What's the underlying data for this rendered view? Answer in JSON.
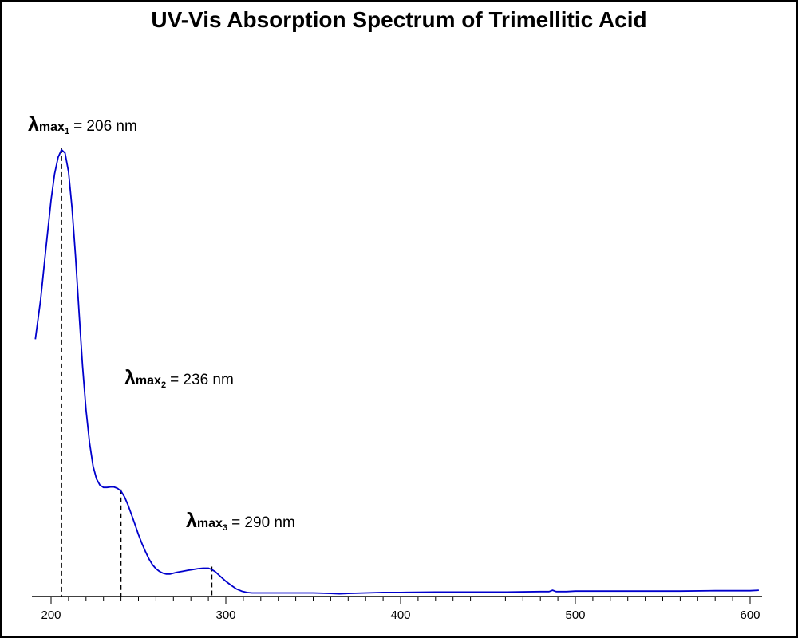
{
  "chart_data": {
    "type": "line",
    "title": "UV-Vis Absorption Spectrum of Trimellitic Acid",
    "xlabel": "",
    "ylabel": "",
    "xlim": [
      191,
      605
    ],
    "ylim": [
      0,
      1
    ],
    "x_ticks": [
      200,
      300,
      400,
      500,
      600
    ],
    "minor_tick_step": 10,
    "grid": false,
    "legend": "none",
    "series": [
      {
        "color": "#0000cc",
        "x": [
          191,
          194,
          197,
          200,
          202,
          204,
          206,
          208,
          210,
          212,
          214,
          216,
          218,
          220,
          222,
          224,
          226,
          228,
          230,
          232,
          234,
          236,
          238,
          240,
          242,
          244,
          246,
          248,
          250,
          252,
          254,
          256,
          258,
          260,
          262,
          264,
          266,
          268,
          270,
          272,
          275,
          278,
          281,
          284,
          287,
          290,
          292,
          294,
          296,
          298,
          300,
          303,
          306,
          309,
          312,
          315,
          318,
          322,
          330,
          340,
          350,
          360,
          365,
          370,
          380,
          390,
          400,
          420,
          440,
          460,
          480,
          485,
          487,
          489,
          491,
          495,
          500,
          520,
          540,
          560,
          580,
          590,
          600,
          605
        ],
        "y": [
          0.573,
          0.661,
          0.773,
          0.883,
          0.941,
          0.978,
          0.995,
          0.988,
          0.946,
          0.865,
          0.757,
          0.635,
          0.515,
          0.416,
          0.343,
          0.291,
          0.262,
          0.248,
          0.243,
          0.243,
          0.244,
          0.244,
          0.241,
          0.235,
          0.222,
          0.204,
          0.183,
          0.161,
          0.138,
          0.118,
          0.1,
          0.084,
          0.071,
          0.062,
          0.056,
          0.052,
          0.05,
          0.05,
          0.052,
          0.054,
          0.056,
          0.058,
          0.06,
          0.062,
          0.063,
          0.063,
          0.06,
          0.055,
          0.048,
          0.041,
          0.034,
          0.025,
          0.017,
          0.012,
          0.009,
          0.008,
          0.008,
          0.008,
          0.008,
          0.008,
          0.008,
          0.007,
          0.006,
          0.007,
          0.008,
          0.009,
          0.009,
          0.01,
          0.01,
          0.01,
          0.011,
          0.011,
          0.014,
          0.011,
          0.011,
          0.011,
          0.012,
          0.012,
          0.012,
          0.012,
          0.013,
          0.013,
          0.013,
          0.014
        ]
      }
    ],
    "peaks": [
      {
        "x": 206,
        "y": 0.995,
        "subscript": "1",
        "text": "= 206 nm"
      },
      {
        "x": 240,
        "y": 0.235,
        "subscript": "2",
        "text": "= 236 nm"
      },
      {
        "x": 292,
        "y": 0.063,
        "subscript": "3",
        "text": "= 290 nm"
      }
    ],
    "peak_symbol": "λ",
    "peak_symbol_sub": "max"
  }
}
